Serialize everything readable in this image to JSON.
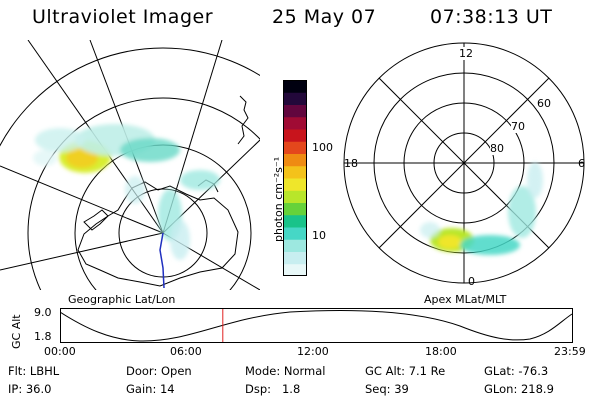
{
  "header": {
    "instrument": "Ultraviolet Imager",
    "date": "25 May 07",
    "time": "07:38:13 UT"
  },
  "colorbar": {
    "unit_label": "photon cm⁻²s⁻¹",
    "ticks": [
      "100",
      "10"
    ],
    "colors": [
      "#e8f8f8",
      "#c8eef0",
      "#9de8e0",
      "#46d7c6",
      "#19c38a",
      "#66d23a",
      "#b8e62a",
      "#efe62a",
      "#f4c21a",
      "#ef8b12",
      "#e4471c",
      "#c8141c",
      "#a00b34",
      "#62063e",
      "#22083a",
      "#000010"
    ]
  },
  "left_map": {
    "label": "Geographic Lat/Lon"
  },
  "right_map": {
    "label": "Apex MLat/MLT",
    "mlt_labels": {
      "top": "12",
      "left": "18",
      "right": "6",
      "bottom": "0"
    },
    "lat_labels": [
      "60",
      "70",
      "80"
    ]
  },
  "altitude_plot": {
    "ylabel": "GC Alt",
    "y_ticks": [
      "9.0",
      "1.8"
    ],
    "x_ticks": [
      "00:00",
      "06:00",
      "12:00",
      "18:00",
      "23:59"
    ],
    "current_time_fraction": 0.318
  },
  "footer": {
    "flt": "Flt: LBHL",
    "ip": "IP: 36.0",
    "door": "Door: Open",
    "gain": "Gain: 14",
    "mode": "Mode: Normal",
    "dsp": "Dsp:   1.8",
    "gc_alt": "GC Alt: 7.1 Re",
    "seq": "Seq: 39",
    "glat": "GLat: -76.3",
    "glon": "GLon: 218.9"
  }
}
